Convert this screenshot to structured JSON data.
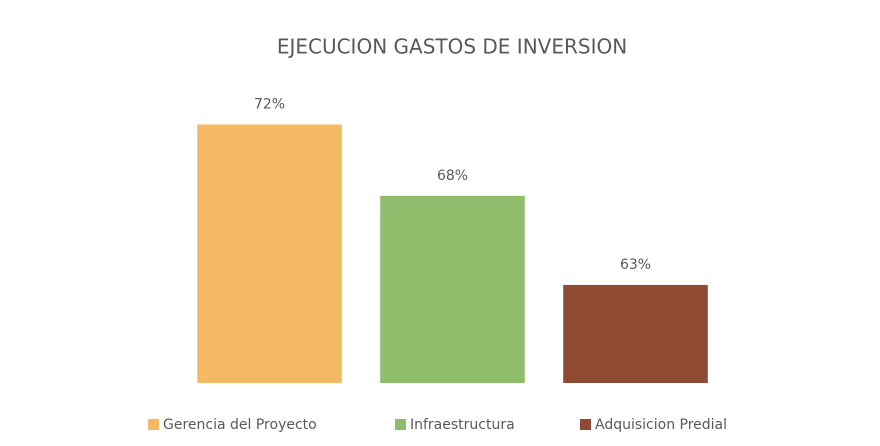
{
  "chart_data": {
    "type": "bar",
    "title": "EJECUCION GASTOS DE INVERSION",
    "categories": [
      null
    ],
    "series": [
      {
        "name": "Gerencia del Proyecto",
        "color": "#f4b963",
        "values": [
          72
        ],
        "value_labels": [
          "72%"
        ]
      },
      {
        "name": "Infraestructura",
        "color": "#8fbd6b",
        "values": [
          68
        ],
        "value_labels": [
          "68%"
        ]
      },
      {
        "name": "Adquisicion Predial",
        "color": "#8e4a33",
        "values": [
          63
        ],
        "value_labels": [
          "63%"
        ]
      }
    ],
    "ylim": [
      57.5,
      75
    ],
    "legend": "bottom"
  }
}
